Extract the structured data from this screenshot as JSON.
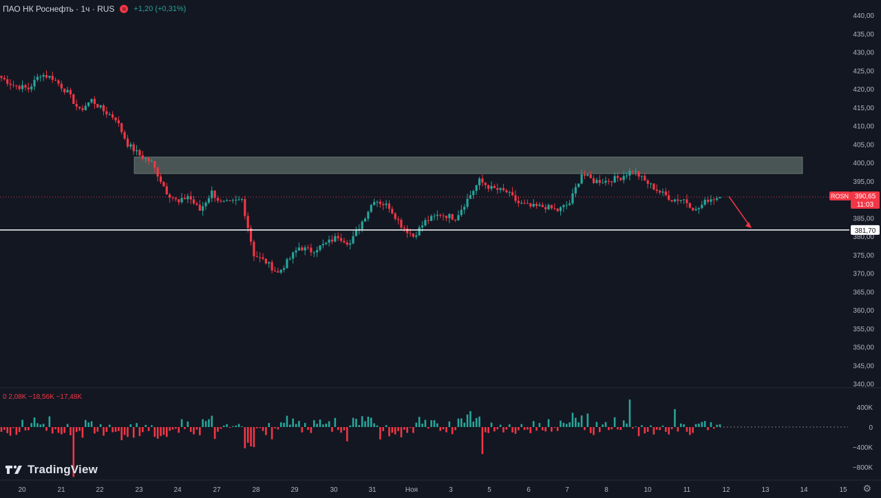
{
  "header": {
    "title": "ПАО НК Роснефть · 1ч · RUS",
    "badge_icon": "currency-icon",
    "change": "+1,20 (+0,31%)"
  },
  "volume_legend": "0  2,08K  −18,56K  −17,48K",
  "logo": {
    "text": "TradingView",
    "icon": "tradingview-logo-icon"
  },
  "price_tag": {
    "symbol": "ROSN",
    "price": "390,65",
    "countdown": "11:03"
  },
  "level_tag": {
    "price": "381,70"
  },
  "colors": {
    "background": "#131722",
    "up": "#26a69a",
    "down": "#f23645",
    "zone": "#5b6b66",
    "level_line": "#ffffff",
    "arrow": "#f23645"
  },
  "chart_data": {
    "type": "candlestick",
    "title": "",
    "ylim": [
      340,
      440
    ],
    "y_ticks": [
      "440,00",
      "435,00",
      "430,00",
      "425,00",
      "420,00",
      "415,00",
      "410,00",
      "405,00",
      "400,00",
      "395,00",
      "390,00",
      "385,00",
      "380,00",
      "375,00",
      "370,00",
      "365,00",
      "360,00",
      "355,00",
      "350,00",
      "345,00",
      "340,00"
    ],
    "x_ticks": [
      "20",
      "21",
      "22",
      "23",
      "24",
      "27",
      "28",
      "29",
      "30",
      "31",
      "Ноя",
      "3",
      "5",
      "6",
      "7",
      "8",
      "10",
      "11",
      "12",
      "13",
      "14",
      "15"
    ],
    "last_price": 390.65,
    "resistance_zone": {
      "from": 397,
      "to": 401.5
    },
    "support_level": 381.7,
    "close_path": [
      [
        0,
        423
      ],
      [
        4,
        421
      ],
      [
        9,
        420
      ],
      [
        13,
        424
      ],
      [
        17,
        423
      ],
      [
        22,
        419
      ],
      [
        26,
        414
      ],
      [
        30,
        417
      ],
      [
        34,
        414
      ],
      [
        38,
        412
      ],
      [
        42,
        405
      ],
      [
        46,
        402
      ],
      [
        50,
        400
      ],
      [
        55,
        392
      ],
      [
        59,
        389
      ],
      [
        62,
        391
      ],
      [
        66,
        387
      ],
      [
        70,
        392
      ],
      [
        73,
        389
      ],
      [
        76,
        389
      ],
      [
        80,
        390
      ],
      [
        84,
        375
      ],
      [
        88,
        373
      ],
      [
        92,
        370
      ],
      [
        95,
        373
      ],
      [
        99,
        377
      ],
      [
        103,
        376
      ],
      [
        108,
        378
      ],
      [
        112,
        380
      ],
      [
        116,
        378
      ],
      [
        120,
        384
      ],
      [
        124,
        390
      ],
      [
        129,
        388
      ],
      [
        133,
        383
      ],
      [
        137,
        380
      ],
      [
        141,
        384
      ],
      [
        146,
        386
      ],
      [
        151,
        385
      ],
      [
        155,
        390
      ],
      [
        159,
        395
      ],
      [
        163,
        393
      ],
      [
        168,
        392
      ],
      [
        172,
        389
      ],
      [
        176,
        388
      ],
      [
        181,
        388
      ],
      [
        185,
        387
      ],
      [
        189,
        389
      ],
      [
        193,
        397
      ],
      [
        197,
        395
      ],
      [
        201,
        395
      ],
      [
        206,
        396
      ],
      [
        210,
        398
      ],
      [
        214,
        395
      ],
      [
        219,
        392
      ],
      [
        223,
        390
      ],
      [
        227,
        390
      ],
      [
        231,
        387
      ],
      [
        235,
        390
      ],
      [
        239,
        390.65
      ]
    ],
    "volume": {
      "ylim": [
        -900,
        1100
      ],
      "y_ticks": [
        "400K",
        "0",
        "−400K",
        "−800K"
      ],
      "last": [
        2.08,
        -18.56,
        -17.48
      ]
    }
  }
}
